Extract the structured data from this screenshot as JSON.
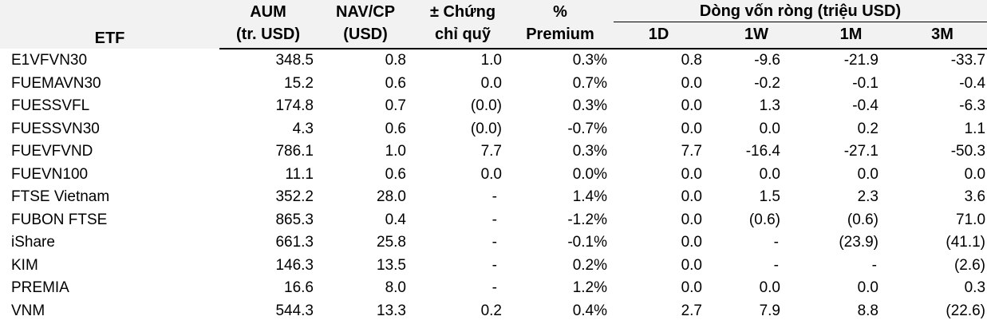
{
  "header": {
    "etf": "ETF",
    "aum_line1": "AUM",
    "aum_line2": "(tr. USD)",
    "nav_line1": "NAV/CP",
    "nav_line2": "(USD)",
    "chg_line1": "± Chứng",
    "chg_line2": "chỉ quỹ",
    "prem_line1": "%",
    "prem_line2": "Premium",
    "flow_group": "Dòng vốn ròng (triệu USD)",
    "flow_1d": "1D",
    "flow_1w": "1W",
    "flow_1m": "1M",
    "flow_3m": "3M"
  },
  "rows": [
    {
      "name": "E1VFVN30",
      "aum": "348.5",
      "nav": "0.8",
      "chg": "1.0",
      "prem": "0.3%",
      "d1": "0.8",
      "w1": "-9.6",
      "m1": "-21.9",
      "m3": "-33.7"
    },
    {
      "name": "FUEMAVN30",
      "aum": "15.2",
      "nav": "0.6",
      "chg": "0.0",
      "prem": "0.7%",
      "d1": "0.0",
      "w1": "-0.2",
      "m1": "-0.1",
      "m3": "-0.4"
    },
    {
      "name": "FUESSVFL",
      "aum": "174.8",
      "nav": "0.7",
      "chg": "(0.0)",
      "prem": "0.3%",
      "d1": "0.0",
      "w1": "1.3",
      "m1": "-0.4",
      "m3": "-6.3"
    },
    {
      "name": "FUESSVN30",
      "aum": "4.3",
      "nav": "0.6",
      "chg": "(0.0)",
      "prem": "-0.7%",
      "d1": "0.0",
      "w1": "0.0",
      "m1": "0.2",
      "m3": "1.1"
    },
    {
      "name": "FUEVFVND",
      "aum": "786.1",
      "nav": "1.0",
      "chg": "7.7",
      "prem": "0.3%",
      "d1": "7.7",
      "w1": "-16.4",
      "m1": "-27.1",
      "m3": "-50.3"
    },
    {
      "name": "FUEVN100",
      "aum": "11.1",
      "nav": "0.6",
      "chg": "0.0",
      "prem": "0.0%",
      "d1": "0.0",
      "w1": "0.0",
      "m1": "0.0",
      "m3": "0.0"
    },
    {
      "name": "FTSE Vietnam",
      "aum": "352.2",
      "nav": "28.0",
      "chg": "-",
      "prem": "1.4%",
      "d1": "0.0",
      "w1": "1.5",
      "m1": "2.3",
      "m3": "3.6"
    },
    {
      "name": "FUBON FTSE",
      "aum": "865.3",
      "nav": "0.4",
      "chg": "-",
      "prem": "-1.2%",
      "d1": "0.0",
      "w1": "(0.6)",
      "m1": "(0.6)",
      "m3": "71.0"
    },
    {
      "name": "iShare",
      "aum": "661.3",
      "nav": "25.8",
      "chg": "-",
      "prem": "-0.1%",
      "d1": "0.0",
      "w1": "-",
      "m1": "(23.9)",
      "m3": "(41.1)"
    },
    {
      "name": "KIM",
      "aum": "146.3",
      "nav": "13.5",
      "chg": "-",
      "prem": "0.2%",
      "d1": "0.0",
      "w1": "-",
      "m1": "-",
      "m3": "(2.6)"
    },
    {
      "name": "PREMIA",
      "aum": "16.6",
      "nav": "8.0",
      "chg": "-",
      "prem": "1.2%",
      "d1": "0.0",
      "w1": "0.0",
      "m1": "0.0",
      "m3": "0.3"
    },
    {
      "name": "VNM",
      "aum": "544.3",
      "nav": "13.3",
      "chg": "0.2",
      "prem": "0.4%",
      "d1": "2.7",
      "w1": "7.9",
      "m1": "8.8",
      "m3": "(22.6)"
    }
  ]
}
